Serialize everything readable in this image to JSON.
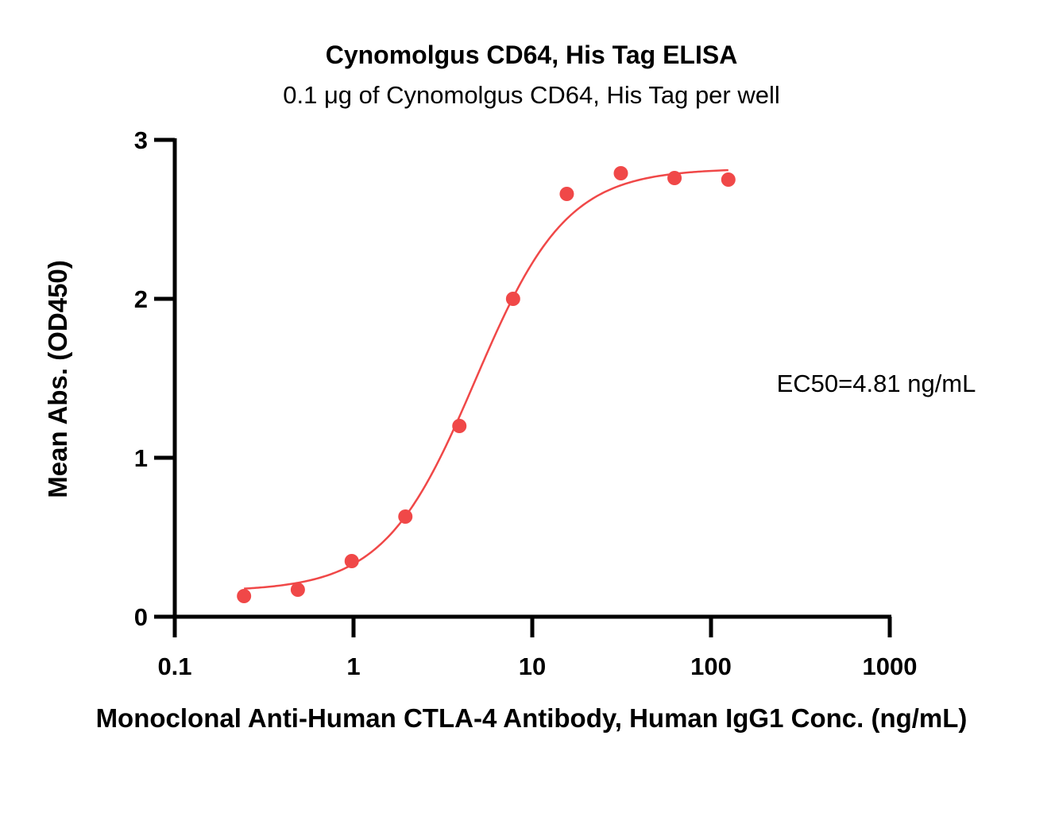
{
  "chart_data": {
    "type": "scatter",
    "title": "Cynomolgus CD64, His Tag ELISA",
    "subtitle": "0.1 μg of Cynomolgus CD64, His Tag per well",
    "xlabel": "Monoclonal Anti-Human CTLA-4 Antibody, Human IgG1 Conc. (ng/mL)",
    "ylabel": "Mean Abs. (OD450)",
    "x_scale": "log",
    "xlim": [
      0.1,
      1000
    ],
    "ylim": [
      0,
      3
    ],
    "x_ticks": [
      0.1,
      1,
      10,
      100,
      1000
    ],
    "x_tick_labels": [
      "0.1",
      "1",
      "10",
      "100",
      "1000"
    ],
    "y_ticks": [
      0,
      1,
      2,
      3
    ],
    "y_tick_labels": [
      "0",
      "1",
      "2",
      "3"
    ],
    "grid": false,
    "legend": "none",
    "annotation": "EC50=4.81 ng/mL",
    "series": [
      {
        "x": [
          0.244,
          0.488,
          0.977,
          1.95,
          3.91,
          7.81,
          15.6,
          31.3,
          62.5,
          125
        ],
        "y": [
          0.13,
          0.17,
          0.35,
          0.63,
          1.2,
          2.0,
          2.66,
          2.79,
          2.76,
          2.75
        ],
        "color": "#f04848"
      }
    ],
    "fit_curve": {
      "type": "4PL",
      "bottom": 0.16,
      "top": 2.82,
      "ec50": 4.81,
      "hill": 1.7,
      "x_range": [
        0.244,
        125
      ],
      "color": "#f04848"
    }
  }
}
